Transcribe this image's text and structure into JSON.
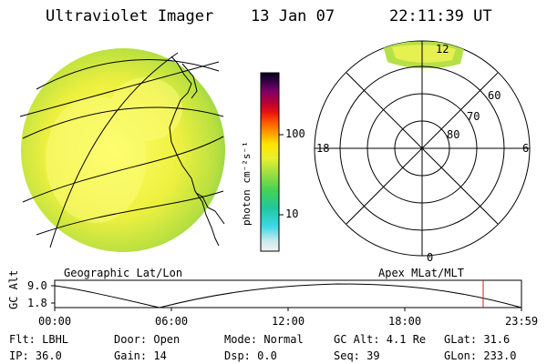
{
  "header": {
    "title": "Ultraviolet Imager",
    "date": "13 Jan 07",
    "time": "22:11:39 UT"
  },
  "colorbar": {
    "unit_label": "photon cm⁻²s⁻¹",
    "ticks": [
      "100",
      "10"
    ]
  },
  "geo_panel": {
    "label": "Geographic Lat/Lon"
  },
  "polar_panel": {
    "label": "Apex MLat/MLT",
    "mlt_labels": {
      "top": "12",
      "left": "18",
      "right": "6",
      "bottom": "0"
    },
    "lat_labels": [
      "60",
      "70",
      "80"
    ]
  },
  "altitude_plot": {
    "ylabel": "GC Alt",
    "ytick_top": "9.0",
    "ytick_bottom": "1.8",
    "xticks": [
      "00:00",
      "06:00",
      "12:00",
      "18:00",
      "23:59"
    ],
    "cursor_color": "#cc2222"
  },
  "info": {
    "flt": "Flt: LBHL",
    "ip": "IP: 36.0",
    "door": "Door: Open",
    "gain": "Gain: 14",
    "mode": "Mode: Normal",
    "dsp": "Dsp:    0.0",
    "gcalt": "GC Alt: 4.1 Re",
    "seq": "Seq: 39",
    "glat": "GLat:  31.6",
    "glon": "GLon: 233.0"
  }
}
